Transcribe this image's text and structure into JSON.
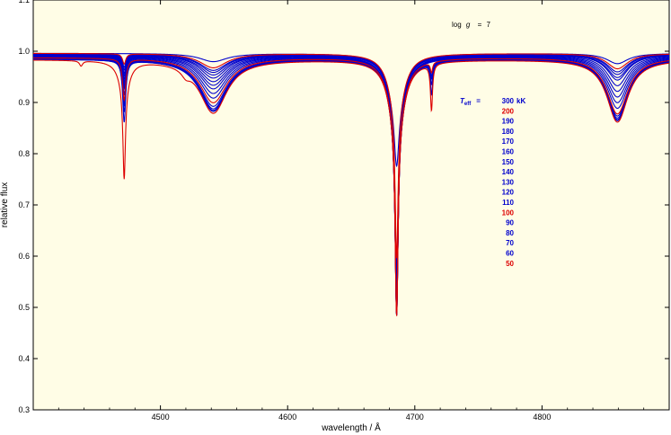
{
  "chart_data": {
    "type": "line",
    "xlabel": "wavelength / Å",
    "ylabel": "relative flux",
    "xlim": [
      4400,
      4900
    ],
    "ylim": [
      0.3,
      1.1
    ],
    "x_ticks": [
      4500,
      4600,
      4700,
      4800
    ],
    "y_ticks": [
      0.3,
      0.4,
      0.5,
      0.6,
      0.7,
      0.8,
      0.9,
      1.0,
      1.1
    ],
    "x_tick_labels": [
      "4500",
      "4600",
      "4700",
      "4800"
    ],
    "y_tick_labels": [
      "0.3",
      "0.4",
      "0.5",
      "0.6",
      "0.7",
      "0.8",
      "0.9",
      "1.0",
      "1.1"
    ],
    "annotation": {
      "prefix": "log",
      "symbol": "g",
      "equals": "=",
      "value": "7"
    },
    "legend": {
      "label_symbol": "T",
      "label_sub": "eff",
      "equals": "=",
      "unit": "kK",
      "entries": [
        {
          "text": "300",
          "color": "#0000cc"
        },
        {
          "text": "200",
          "color": "#dd0000"
        },
        {
          "text": "190",
          "color": "#0000cc"
        },
        {
          "text": "180",
          "color": "#0000cc"
        },
        {
          "text": "170",
          "color": "#0000cc"
        },
        {
          "text": "160",
          "color": "#0000cc"
        },
        {
          "text": "150",
          "color": "#0000cc"
        },
        {
          "text": "140",
          "color": "#0000cc"
        },
        {
          "text": "130",
          "color": "#0000cc"
        },
        {
          "text": "120",
          "color": "#0000cc"
        },
        {
          "text": "110",
          "color": "#0000cc"
        },
        {
          "text": "100",
          "color": "#dd0000"
        },
        {
          "text": "90",
          "color": "#0000cc"
        },
        {
          "text": "80",
          "color": "#0000cc"
        },
        {
          "text": "70",
          "color": "#0000cc"
        },
        {
          "text": "60",
          "color": "#0000cc"
        },
        {
          "text": "50",
          "color": "#dd0000"
        }
      ]
    },
    "colors": {
      "background": "#fffde6",
      "blue": "#0000cc",
      "red": "#dd0000"
    },
    "series_params": [
      {
        "teff": 300,
        "color": "#0000cc",
        "cont": 0.996,
        "lines": [
          [
            4541.6,
            0.016,
            13
          ],
          [
            4685.7,
            0.12,
            2.2
          ],
          [
            4685.7,
            0.1,
            8
          ],
          [
            4859.3,
            0.02,
            10
          ]
        ]
      },
      {
        "teff": 200,
        "color": "#dd0000",
        "cont": 0.996,
        "lines": [
          [
            4541.6,
            0.028,
            13
          ],
          [
            4685.7,
            0.3,
            1.4
          ],
          [
            4685.7,
            0.1,
            7.5
          ],
          [
            4859.3,
            0.03,
            10
          ],
          [
            4471.5,
            0.02,
            1.5
          ]
        ]
      },
      {
        "teff": 190,
        "color": "#0000cc",
        "cont": 0.995,
        "lines": [
          [
            4541.6,
            0.032,
            13
          ],
          [
            4685.7,
            0.32,
            1.4
          ],
          [
            4685.7,
            0.11,
            7.5
          ],
          [
            4859.3,
            0.035,
            10
          ],
          [
            4471.5,
            0.025,
            1.5
          ]
        ]
      },
      {
        "teff": 180,
        "color": "#0000cc",
        "cont": 0.995,
        "lines": [
          [
            4541.6,
            0.036,
            13
          ],
          [
            4685.7,
            0.33,
            1.4
          ],
          [
            4685.7,
            0.11,
            7.5
          ],
          [
            4859.3,
            0.04,
            10
          ],
          [
            4471.5,
            0.03,
            1.5
          ]
        ]
      },
      {
        "teff": 170,
        "color": "#0000cc",
        "cont": 0.994,
        "lines": [
          [
            4541.6,
            0.04,
            13
          ],
          [
            4685.7,
            0.34,
            1.4
          ],
          [
            4685.7,
            0.11,
            7.5
          ],
          [
            4859.3,
            0.045,
            10
          ],
          [
            4471.5,
            0.035,
            1.5
          ]
        ]
      },
      {
        "teff": 160,
        "color": "#0000cc",
        "cont": 0.994,
        "lines": [
          [
            4541.6,
            0.046,
            13
          ],
          [
            4685.7,
            0.35,
            1.4
          ],
          [
            4685.7,
            0.11,
            7.5
          ],
          [
            4859.3,
            0.05,
            10
          ],
          [
            4471.5,
            0.04,
            1.5
          ]
        ]
      },
      {
        "teff": 150,
        "color": "#0000cc",
        "cont": 0.993,
        "lines": [
          [
            4541.6,
            0.052,
            13
          ],
          [
            4685.7,
            0.36,
            1.4
          ],
          [
            4685.7,
            0.11,
            7.5
          ],
          [
            4859.3,
            0.06,
            10
          ],
          [
            4471.5,
            0.045,
            1.5
          ]
        ]
      },
      {
        "teff": 140,
        "color": "#0000cc",
        "cont": 0.992,
        "lines": [
          [
            4541.6,
            0.058,
            13
          ],
          [
            4685.7,
            0.36,
            1.4
          ],
          [
            4685.7,
            0.12,
            7.5
          ],
          [
            4859.3,
            0.07,
            10
          ],
          [
            4471.5,
            0.05,
            1.5
          ]
        ]
      },
      {
        "teff": 130,
        "color": "#0000cc",
        "cont": 0.991,
        "lines": [
          [
            4541.6,
            0.064,
            13
          ],
          [
            4685.7,
            0.37,
            1.4
          ],
          [
            4685.7,
            0.12,
            7.5
          ],
          [
            4859.3,
            0.08,
            10
          ],
          [
            4471.5,
            0.055,
            1.5
          ]
        ]
      },
      {
        "teff": 120,
        "color": "#0000cc",
        "cont": 0.99,
        "lines": [
          [
            4541.6,
            0.072,
            13
          ],
          [
            4685.7,
            0.37,
            1.4
          ],
          [
            4685.7,
            0.12,
            7.5
          ],
          [
            4859.3,
            0.09,
            10
          ],
          [
            4471.5,
            0.06,
            1.5
          ]
        ]
      },
      {
        "teff": 110,
        "color": "#0000cc",
        "cont": 0.989,
        "lines": [
          [
            4541.6,
            0.08,
            13
          ],
          [
            4685.7,
            0.38,
            1.4
          ],
          [
            4685.7,
            0.12,
            7.5
          ],
          [
            4859.3,
            0.1,
            10
          ],
          [
            4471.5,
            0.07,
            1.5
          ]
        ]
      },
      {
        "teff": 100,
        "color": "#dd0000",
        "cont": 0.988,
        "lines": [
          [
            4541.6,
            0.088,
            13
          ],
          [
            4685.7,
            0.38,
            1.4
          ],
          [
            4685.7,
            0.12,
            7.5
          ],
          [
            4859.3,
            0.11,
            10
          ],
          [
            4471.5,
            0.08,
            1.5
          ],
          [
            4713.1,
            0.02,
            1.0
          ]
        ]
      },
      {
        "teff": 90,
        "color": "#0000cc",
        "cont": 0.987,
        "lines": [
          [
            4541.6,
            0.094,
            13
          ],
          [
            4685.7,
            0.38,
            1.4
          ],
          [
            4685.7,
            0.12,
            7.5
          ],
          [
            4859.3,
            0.113,
            10
          ],
          [
            4471.5,
            0.085,
            1.5
          ],
          [
            4713.1,
            0.025,
            1.0
          ]
        ]
      },
      {
        "teff": 80,
        "color": "#0000cc",
        "cont": 0.986,
        "lines": [
          [
            4541.6,
            0.098,
            13
          ],
          [
            4685.7,
            0.38,
            1.4
          ],
          [
            4685.7,
            0.12,
            7.5
          ],
          [
            4859.3,
            0.116,
            10
          ],
          [
            4471.5,
            0.09,
            1.5
          ],
          [
            4713.1,
            0.03,
            1.0
          ]
        ]
      },
      {
        "teff": 70,
        "color": "#0000cc",
        "cont": 0.985,
        "lines": [
          [
            4541.6,
            0.1,
            13
          ],
          [
            4685.7,
            0.38,
            1.4
          ],
          [
            4685.7,
            0.12,
            7.5
          ],
          [
            4859.3,
            0.118,
            10
          ],
          [
            4471.5,
            0.1,
            1.5
          ],
          [
            4713.1,
            0.04,
            1.0
          ]
        ]
      },
      {
        "teff": 60,
        "color": "#0000cc",
        "cont": 0.985,
        "lines": [
          [
            4541.6,
            0.102,
            13
          ],
          [
            4685.7,
            0.38,
            1.4
          ],
          [
            4685.7,
            0.12,
            7.5
          ],
          [
            4859.3,
            0.12,
            10
          ],
          [
            4471.5,
            0.12,
            1.4
          ],
          [
            4713.1,
            0.06,
            1.0
          ]
        ]
      },
      {
        "teff": 50,
        "color": "#dd0000",
        "cont": 0.984,
        "lines": [
          [
            4541.6,
            0.104,
            13
          ],
          [
            4685.7,
            0.38,
            1.4
          ],
          [
            4685.7,
            0.12,
            7.5
          ],
          [
            4859.3,
            0.122,
            10
          ],
          [
            4471.5,
            0.18,
            1.2
          ],
          [
            4471.5,
            0.05,
            5
          ],
          [
            4713.1,
            0.09,
            1.0
          ],
          [
            4437.6,
            0.01,
            1.5
          ],
          [
            4520,
            0.012,
            4
          ]
        ]
      }
    ]
  }
}
